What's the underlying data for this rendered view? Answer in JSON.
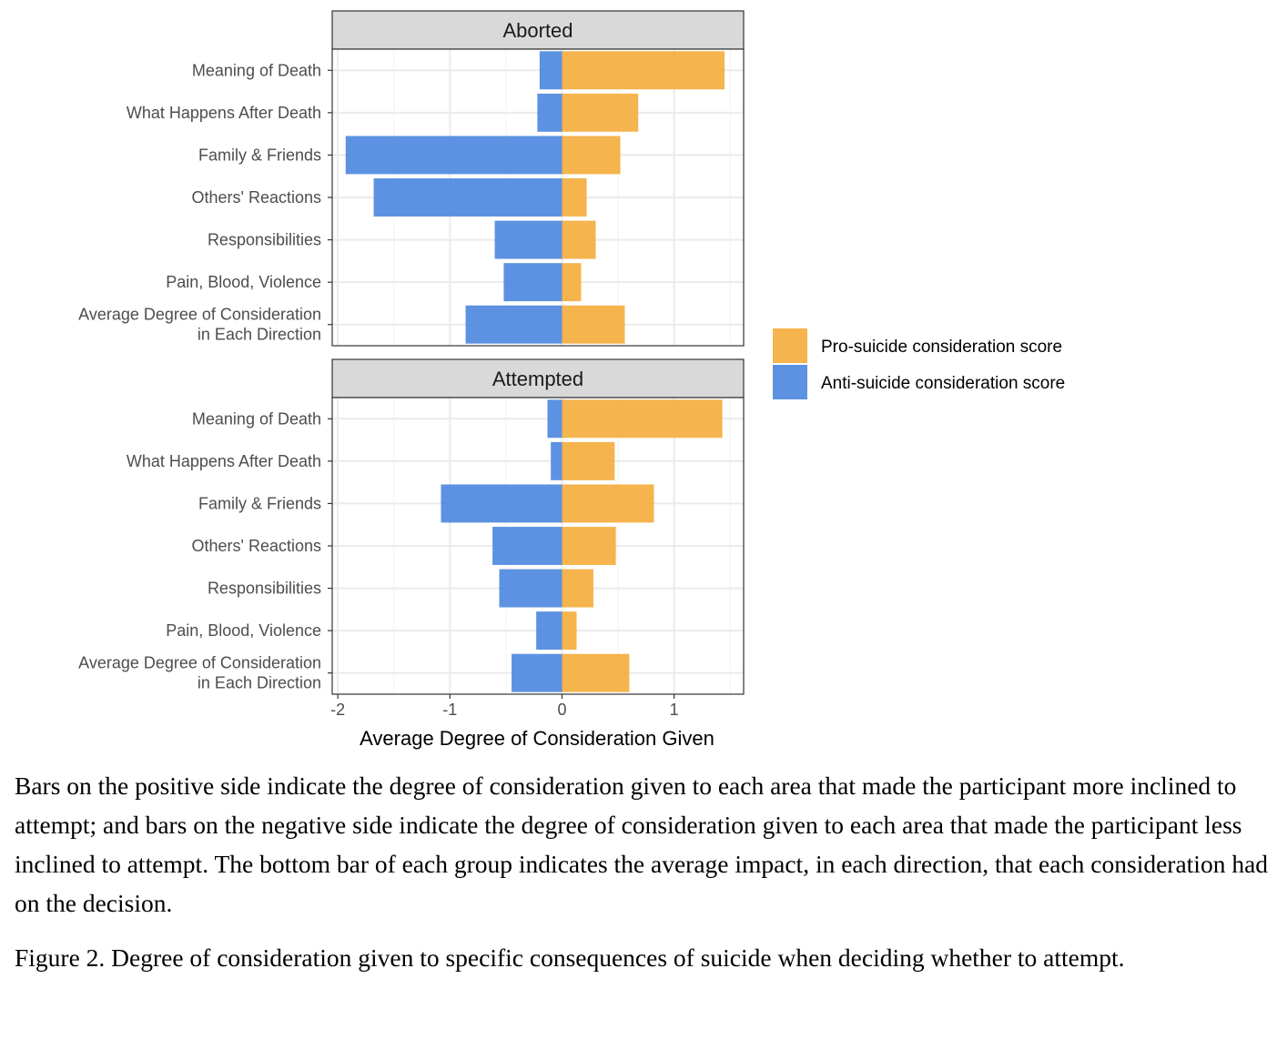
{
  "chart_data": {
    "type": "bar",
    "orientation": "horizontal",
    "stacked": "diverging",
    "xlabel": "Average Degree of Consideration Given",
    "xlim": [
      -2.05,
      1.62
    ],
    "xticks": [
      -2,
      -1,
      0,
      1
    ],
    "xtick_labels": [
      "-2",
      "-1",
      "0",
      "1"
    ],
    "grid": true,
    "legend_position": "right",
    "categories": [
      "Meaning of Death",
      "What Happens After Death",
      "Family & Friends",
      "Others' Reactions",
      "Responsibilities",
      "Pain, Blood, Violence",
      "Average Degree of Consideration\nin Each Direction"
    ],
    "series_meta": [
      {
        "name": "Pro-suicide consideration score",
        "color": "#F4AC3A"
      },
      {
        "name": "Anti-suicide consideration score",
        "color": "#4A86DE"
      }
    ],
    "panels": [
      {
        "title": "Aborted",
        "series": [
          {
            "name": "Pro-suicide consideration score",
            "values": [
              1.45,
              0.68,
              0.52,
              0.22,
              0.3,
              0.17,
              0.56
            ]
          },
          {
            "name": "Anti-suicide consideration score",
            "values": [
              -0.2,
              -0.22,
              -1.93,
              -1.68,
              -0.6,
              -0.52,
              -0.86
            ]
          }
        ]
      },
      {
        "title": "Attempted",
        "series": [
          {
            "name": "Pro-suicide consideration score",
            "values": [
              1.43,
              0.47,
              0.82,
              0.48,
              0.28,
              0.13,
              0.6
            ]
          },
          {
            "name": "Anti-suicide consideration score",
            "values": [
              -0.13,
              -0.1,
              -1.08,
              -0.62,
              -0.56,
              -0.23,
              -0.45
            ]
          }
        ]
      }
    ]
  },
  "caption": "Bars on the positive side indicate the degree of consideration given to each area that made the participant more inclined to attempt; and bars on the negative side indicate the degree of consideration given to each area that made the participant less inclined to attempt. The bottom bar of each group indicates the average impact, in each direction, that each consideration had on the decision.",
  "figure_caption": "Figure 2. Degree of consideration given to specific consequences of suicide when deciding whether to attempt."
}
